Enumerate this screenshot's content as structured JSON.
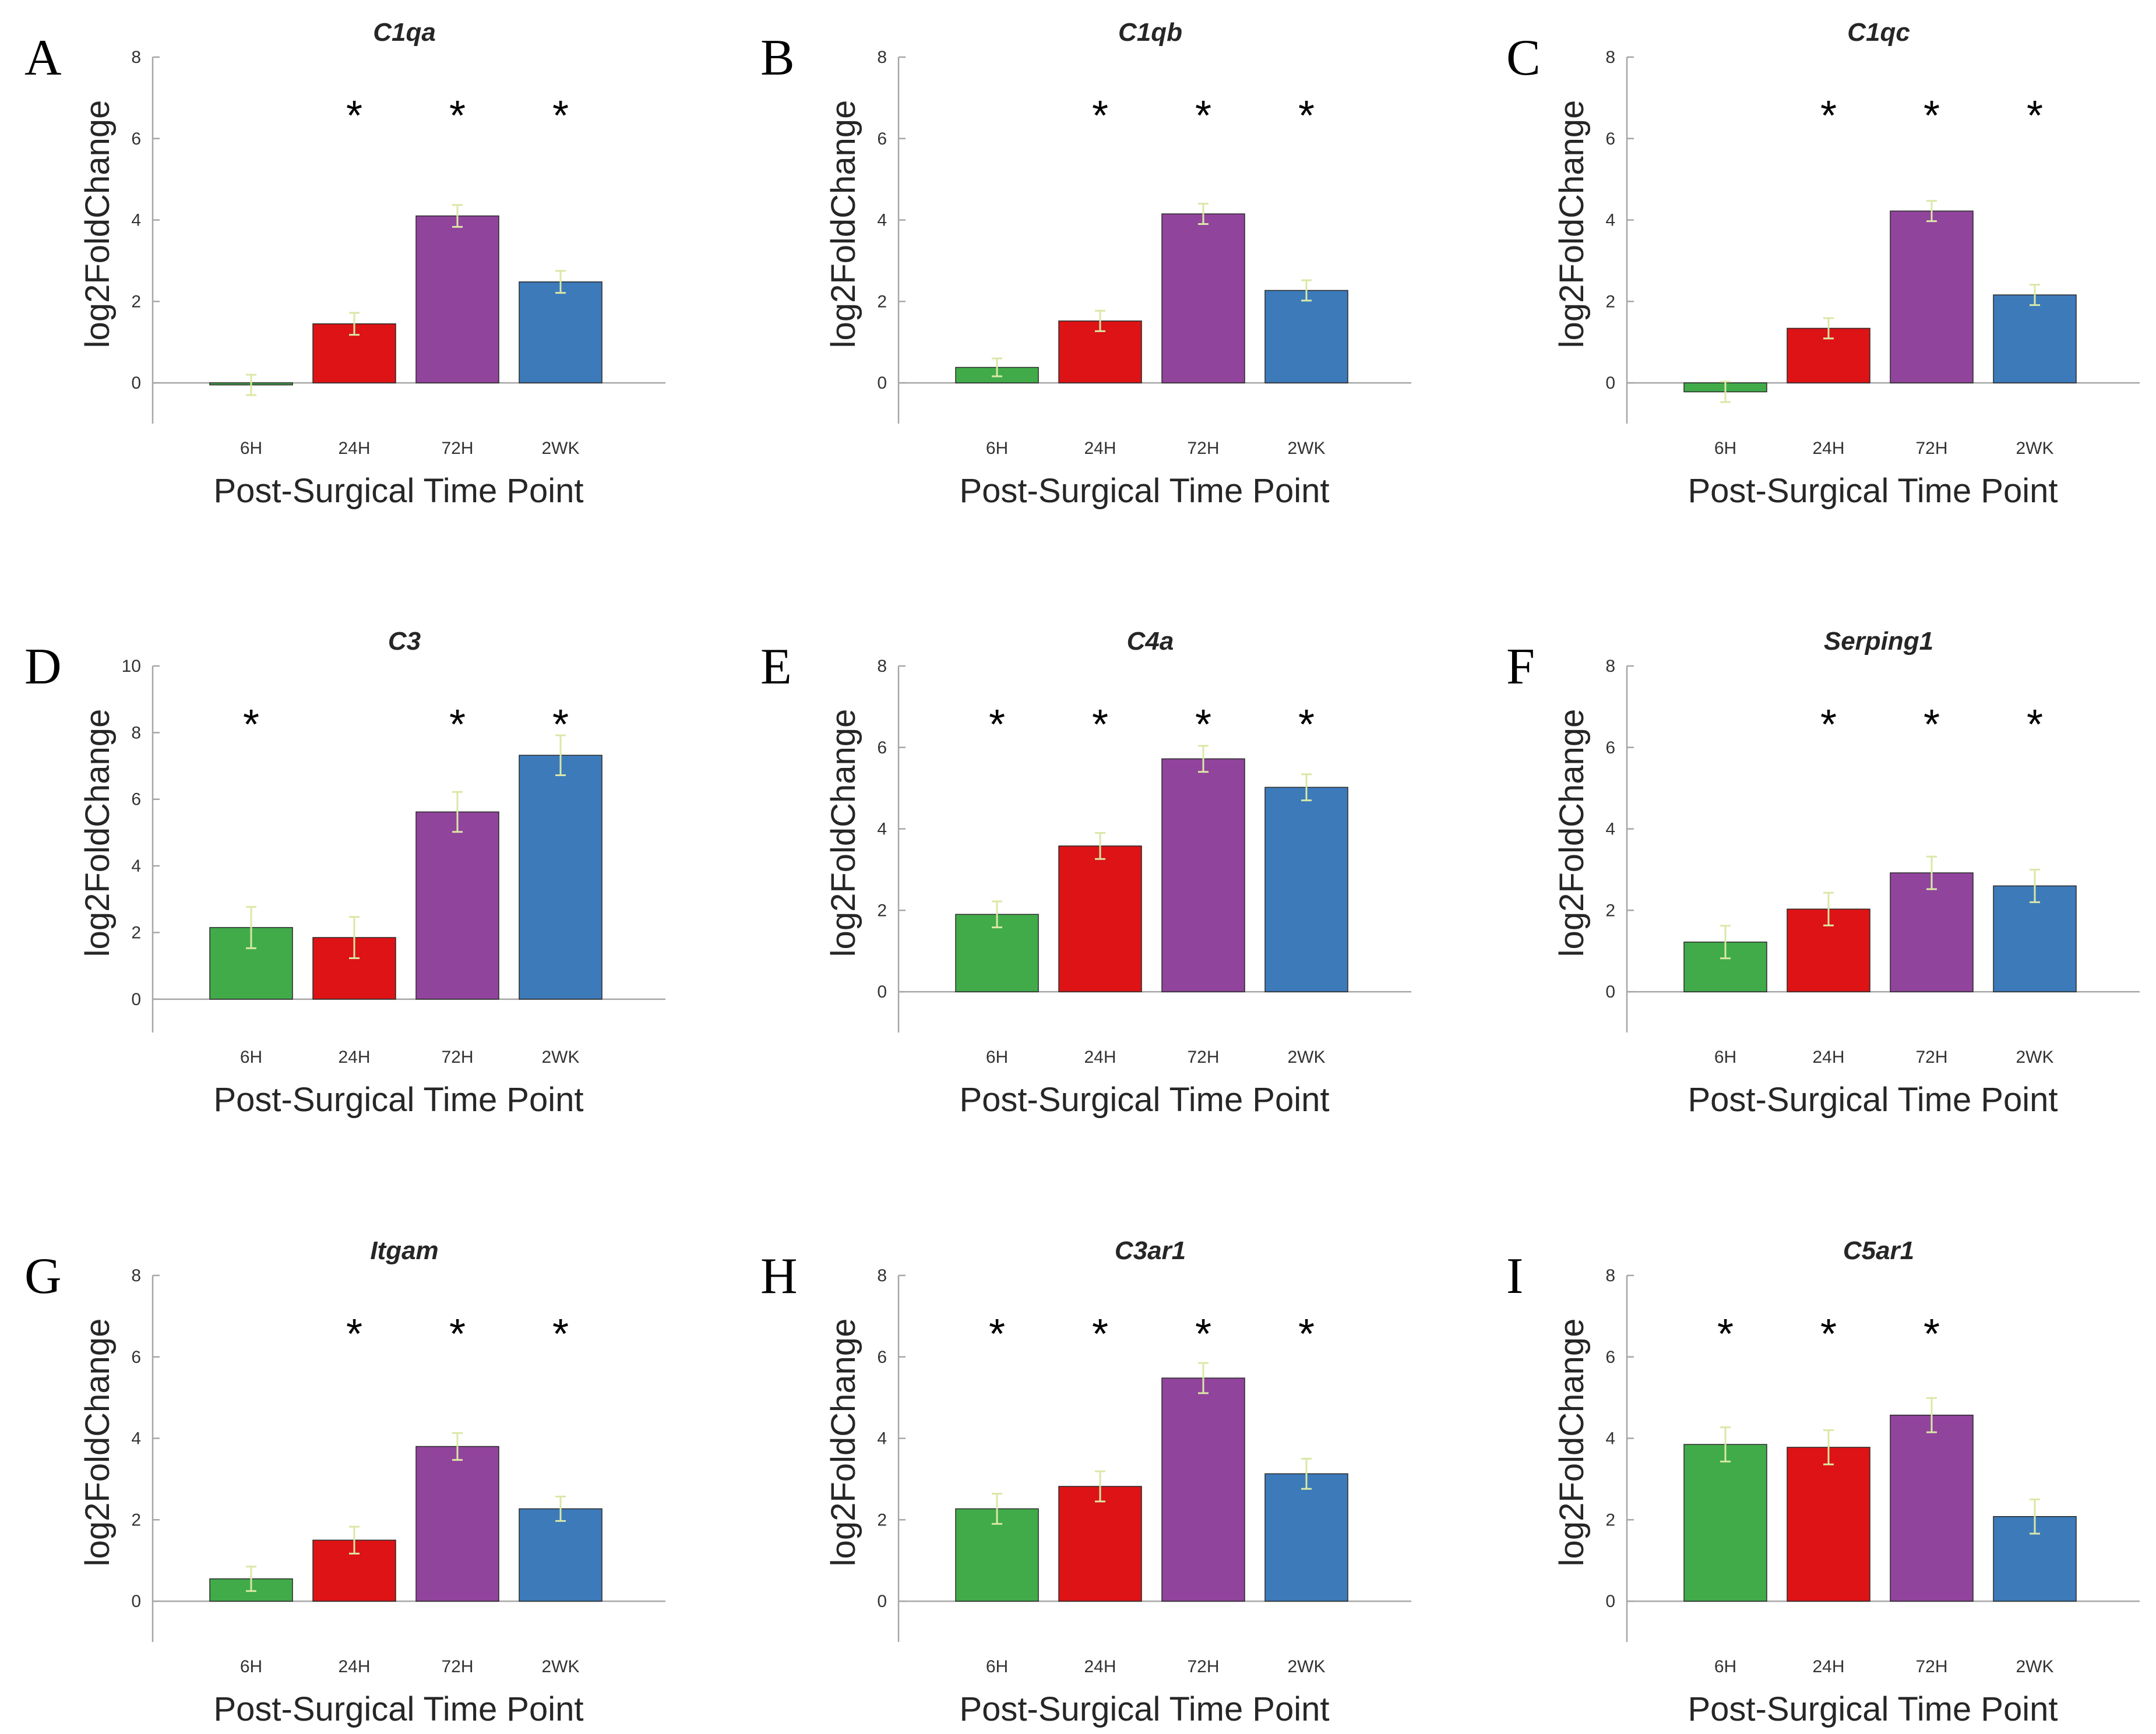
{
  "chart_data": [
    {
      "type": "bar",
      "panel": "A",
      "title": "C1qa",
      "categories": [
        "6H",
        "24H",
        "72H",
        "2WK"
      ],
      "values": [
        -0.05,
        1.45,
        4.1,
        2.48
      ],
      "errors": [
        0.25,
        0.27,
        0.27,
        0.27
      ],
      "significant": [
        false,
        true,
        true,
        true
      ],
      "ylim": [
        -1,
        8
      ],
      "yticks": [
        0,
        2,
        4,
        6,
        8
      ],
      "xlabel": "Post-Surgical Time Point",
      "ylabel": "log2FoldChange"
    },
    {
      "type": "bar",
      "panel": "B",
      "title": "C1qb",
      "categories": [
        "6H",
        "24H",
        "72H",
        "2WK"
      ],
      "values": [
        0.38,
        1.52,
        4.15,
        2.27
      ],
      "errors": [
        0.22,
        0.25,
        0.25,
        0.25
      ],
      "significant": [
        false,
        true,
        true,
        true
      ],
      "ylim": [
        -1,
        8
      ],
      "yticks": [
        0,
        2,
        4,
        6,
        8
      ],
      "xlabel": "Post-Surgical Time Point",
      "ylabel": "log2FoldChange"
    },
    {
      "type": "bar",
      "panel": "C",
      "title": "C1qc",
      "categories": [
        "6H",
        "24H",
        "72H",
        "2WK"
      ],
      "values": [
        -0.22,
        1.34,
        4.22,
        2.16
      ],
      "errors": [
        0.25,
        0.25,
        0.25,
        0.25
      ],
      "significant": [
        false,
        true,
        true,
        true
      ],
      "ylim": [
        -1,
        8
      ],
      "yticks": [
        0,
        2,
        4,
        6,
        8
      ],
      "xlabel": "Post-Surgical Time Point",
      "ylabel": "log2FoldChange"
    },
    {
      "type": "bar",
      "panel": "D",
      "title": "C3",
      "categories": [
        "6H",
        "24H",
        "72H",
        "2WK"
      ],
      "values": [
        2.15,
        1.85,
        5.62,
        7.32
      ],
      "errors": [
        0.62,
        0.62,
        0.6,
        0.6
      ],
      "significant": [
        true,
        false,
        true,
        true
      ],
      "ylim": [
        -1,
        10
      ],
      "yticks": [
        0,
        2,
        4,
        6,
        8,
        10
      ],
      "xlabel": "Post-Surgical Time Point",
      "ylabel": "log2FoldChange"
    },
    {
      "type": "bar",
      "panel": "E",
      "title": "C4a",
      "categories": [
        "6H",
        "24H",
        "72H",
        "2WK"
      ],
      "values": [
        1.9,
        3.58,
        5.72,
        5.02
      ],
      "errors": [
        0.32,
        0.32,
        0.32,
        0.32
      ],
      "significant": [
        true,
        true,
        true,
        true
      ],
      "ylim": [
        -1,
        8
      ],
      "yticks": [
        0,
        2,
        4,
        6,
        8
      ],
      "xlabel": "Post-Surgical Time Point",
      "ylabel": "log2FoldChange"
    },
    {
      "type": "bar",
      "panel": "F",
      "title": "Serping1",
      "categories": [
        "6H",
        "24H",
        "72H",
        "2WK"
      ],
      "values": [
        1.22,
        2.03,
        2.92,
        2.6
      ],
      "errors": [
        0.4,
        0.4,
        0.4,
        0.4
      ],
      "significant": [
        false,
        true,
        true,
        true
      ],
      "ylim": [
        -1,
        8
      ],
      "yticks": [
        0,
        2,
        4,
        6,
        8
      ],
      "xlabel": "Post-Surgical Time Point",
      "ylabel": "log2FoldChange"
    },
    {
      "type": "bar",
      "panel": "G",
      "title": "Itgam",
      "categories": [
        "6H",
        "24H",
        "72H",
        "2WK"
      ],
      "values": [
        0.55,
        1.5,
        3.8,
        2.27
      ],
      "errors": [
        0.3,
        0.33,
        0.33,
        0.3
      ],
      "significant": [
        false,
        true,
        true,
        true
      ],
      "ylim": [
        -1,
        8
      ],
      "yticks": [
        0,
        2,
        4,
        6,
        8
      ],
      "xlabel": "Post-Surgical Time Point",
      "ylabel": "log2FoldChange"
    },
    {
      "type": "bar",
      "panel": "H",
      "title": "C3ar1",
      "categories": [
        "6H",
        "24H",
        "72H",
        "2WK"
      ],
      "values": [
        2.27,
        2.82,
        5.48,
        3.13
      ],
      "errors": [
        0.37,
        0.37,
        0.37,
        0.37
      ],
      "significant": [
        true,
        true,
        true,
        true
      ],
      "ylim": [
        -1,
        8
      ],
      "yticks": [
        0,
        2,
        4,
        6,
        8
      ],
      "xlabel": "Post-Surgical Time Point",
      "ylabel": "log2FoldChange"
    },
    {
      "type": "bar",
      "panel": "I",
      "title": "C5ar1",
      "categories": [
        "6H",
        "24H",
        "72H",
        "2WK"
      ],
      "values": [
        3.85,
        3.78,
        4.57,
        2.08
      ],
      "errors": [
        0.42,
        0.42,
        0.42,
        0.42
      ],
      "significant": [
        true,
        true,
        true,
        false
      ],
      "ylim": [
        -1,
        8
      ],
      "yticks": [
        0,
        2,
        4,
        6,
        8
      ],
      "xlabel": "Post-Surgical Time Point",
      "ylabel": "log2FoldChange"
    }
  ],
  "colors": {
    "6H": "#41ab4a",
    "24H": "#dd1316",
    "72H": "#91449c",
    "2WK": "#3c7aba",
    "error_bar": "#d9e8a6",
    "axis": "#a6a6a6"
  }
}
